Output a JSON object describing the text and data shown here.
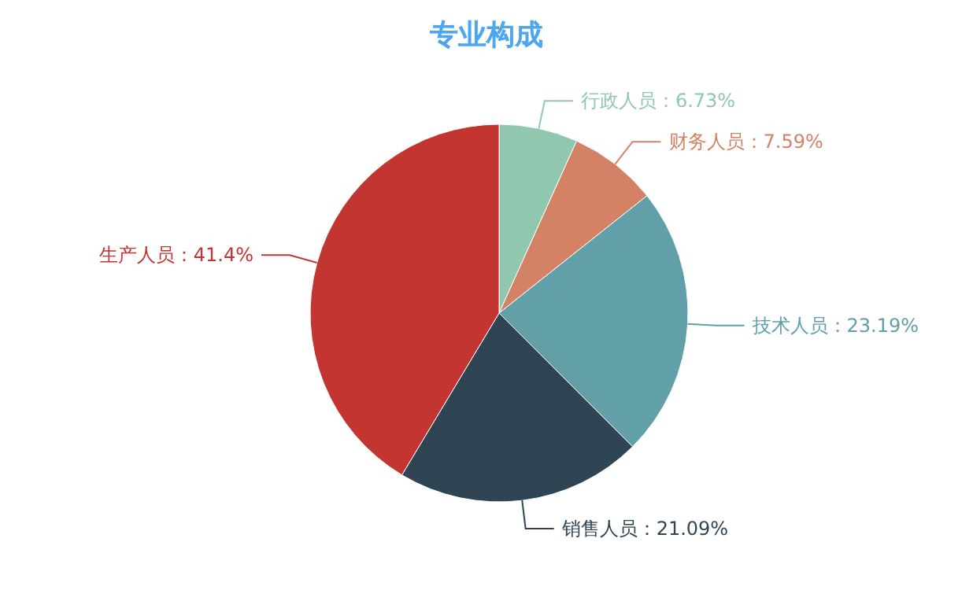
{
  "chart_data": {
    "type": "pie",
    "title": "专业构成",
    "categories": [
      "行政人员",
      "财务人员",
      "技术人员",
      "销售人员",
      "生产人员"
    ],
    "values": [
      6.73,
      7.59,
      23.19,
      21.09,
      41.4
    ],
    "value_labels": [
      "6.73%",
      "7.59%",
      "23.19%",
      "21.09%",
      "41.4%"
    ],
    "colors": [
      "#91c7ae",
      "#d48265",
      "#61a0a8",
      "#2f4554",
      "#c23531"
    ]
  }
}
